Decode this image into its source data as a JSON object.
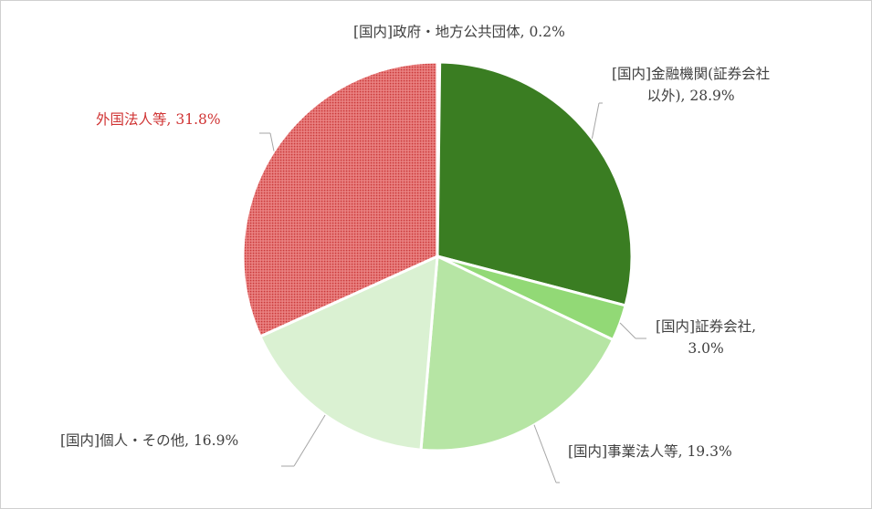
{
  "chart_data": {
    "type": "pie",
    "title": "",
    "start_angle_deg": 0,
    "direction": "clockwise",
    "slices": [
      {
        "label": "[国内]政府・地方公共団体",
        "value": 0.2,
        "label_text": "[国内]政府・地方公共団体, 0.2%",
        "label_lines": [
          "[国内]政府・地方公共団体, 0.2%"
        ],
        "color": "#2e6a1f",
        "pattern": null
      },
      {
        "label": "[国内]金融機関(証券会社以外)",
        "value": 28.9,
        "label_text": "[国内]金融機関(証券会社以外), 28.9%",
        "label_lines": [
          "[国内]金融機関(証券会社",
          "以外), 28.9%"
        ],
        "color": "#3a7d22",
        "pattern": null
      },
      {
        "label": "[国内]証券会社",
        "value": 3.0,
        "label_text": "[国内]証券会社, 3.0%",
        "label_lines": [
          "[国内]証券会社,",
          "3.0%"
        ],
        "color": "#92d976",
        "pattern": null
      },
      {
        "label": "[国内]事業法人等",
        "value": 19.3,
        "label_text": "[国内]事業法人等, 19.3%",
        "label_lines": [
          "[国内]事業法人等, 19.3%"
        ],
        "color": "#b6e5a4",
        "pattern": null
      },
      {
        "label": "[国内]個人・その他",
        "value": 16.9,
        "label_text": "[国内]個人・その他, 16.9%",
        "label_lines": [
          "[国内]個人・その他, 16.9%"
        ],
        "color": "#daf1d2",
        "pattern": null
      },
      {
        "label": "外国法人等",
        "value": 31.8,
        "label_text": "外国法人等, 31.8%",
        "label_lines": [
          "外国法人等, 31.8%"
        ],
        "color": "#e05a5a",
        "pattern": "dotted",
        "label_color": "#d03434"
      }
    ],
    "legend": "none",
    "data_labels": "outside-with-leader-lines"
  }
}
